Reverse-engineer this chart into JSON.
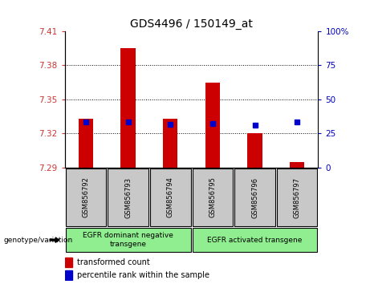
{
  "title": "GDS4496 / 150149_at",
  "samples": [
    "GSM856792",
    "GSM856793",
    "GSM856794",
    "GSM856795",
    "GSM856796",
    "GSM856797"
  ],
  "red_values": [
    7.333,
    7.395,
    7.333,
    7.365,
    7.32,
    7.295
  ],
  "blue_values": [
    7.33,
    7.33,
    7.328,
    7.329,
    7.327,
    7.33
  ],
  "ylim_left": [
    7.29,
    7.41
  ],
  "ylim_right": [
    0,
    100
  ],
  "yticks_left": [
    7.29,
    7.32,
    7.35,
    7.38,
    7.41
  ],
  "yticks_right": [
    0,
    25,
    50,
    75,
    100
  ],
  "grid_values": [
    7.32,
    7.35,
    7.38
  ],
  "group0_label": "EGFR dominant negative\ntransgene",
  "group1_label": "EGFR activated transgene",
  "group_color": "#90EE90",
  "sample_box_color": "#C8C8C8",
  "genotype_label": "genotype/variation",
  "legend_red": "transformed count",
  "legend_blue": "percentile rank within the sample",
  "bar_width": 0.35,
  "red_color": "#CC0000",
  "blue_color": "#0000CC",
  "left_tick_color": "#CC3333",
  "right_tick_color": "#0000BB"
}
